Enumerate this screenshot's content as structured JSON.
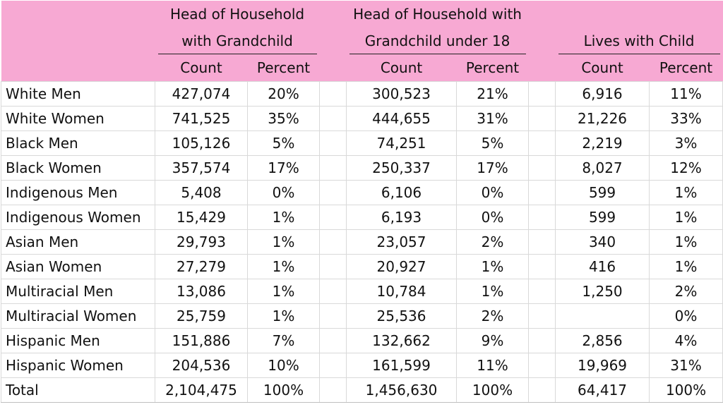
{
  "header": {
    "group1_line1": "Head of Household",
    "group1_line2": "with Grandchild",
    "group2_line1": "Head of Household with",
    "group2_line2": "Grandchild under 18",
    "group3_line2": "Lives with Child",
    "count_label": "Count",
    "percent_label": "Percent"
  },
  "rows": [
    {
      "label": "White Men",
      "a_count": "427,074",
      "a_pct": "20%",
      "b_count": "300,523",
      "b_pct": "21%",
      "c_count": "6,916",
      "c_pct": "11%"
    },
    {
      "label": "White Women",
      "a_count": "741,525",
      "a_pct": "35%",
      "b_count": "444,655",
      "b_pct": "31%",
      "c_count": "21,226",
      "c_pct": "33%"
    },
    {
      "label": "Black Men",
      "a_count": "105,126",
      "a_pct": "5%",
      "b_count": "74,251",
      "b_pct": "5%",
      "c_count": "2,219",
      "c_pct": "3%"
    },
    {
      "label": "Black Women",
      "a_count": "357,574",
      "a_pct": "17%",
      "b_count": "250,337",
      "b_pct": "17%",
      "c_count": "8,027",
      "c_pct": "12%"
    },
    {
      "label": "Indigenous Men",
      "a_count": "5,408",
      "a_pct": "0%",
      "b_count": "6,106",
      "b_pct": "0%",
      "c_count": "599",
      "c_pct": "1%"
    },
    {
      "label": "Indigenous Women",
      "a_count": "15,429",
      "a_pct": "1%",
      "b_count": "6,193",
      "b_pct": "0%",
      "c_count": "599",
      "c_pct": "1%"
    },
    {
      "label": "Asian Men",
      "a_count": "29,793",
      "a_pct": "1%",
      "b_count": "23,057",
      "b_pct": "2%",
      "c_count": "340",
      "c_pct": "1%"
    },
    {
      "label": "Asian Women",
      "a_count": "27,279",
      "a_pct": "1%",
      "b_count": "20,927",
      "b_pct": "1%",
      "c_count": "416",
      "c_pct": "1%"
    },
    {
      "label": "Multiracial Men",
      "a_count": "13,086",
      "a_pct": "1%",
      "b_count": "10,784",
      "b_pct": "1%",
      "c_count": "1,250",
      "c_pct": "2%"
    },
    {
      "label": "Multiracial Women",
      "a_count": "25,759",
      "a_pct": "1%",
      "b_count": "25,536",
      "b_pct": "2%",
      "c_count": "",
      "c_pct": "0%"
    },
    {
      "label": "Hispanic Men",
      "a_count": "151,886",
      "a_pct": "7%",
      "b_count": "132,662",
      "b_pct": "9%",
      "c_count": "2,856",
      "c_pct": "4%"
    },
    {
      "label": "Hispanic Women",
      "a_count": "204,536",
      "a_pct": "10%",
      "b_count": "161,599",
      "b_pct": "11%",
      "c_count": "19,969",
      "c_pct": "31%"
    },
    {
      "label": "Total",
      "a_count": "2,104,475",
      "a_pct": "100%",
      "b_count": "1,456,630",
      "b_pct": "100%",
      "c_count": "64,417",
      "c_pct": "100%"
    }
  ],
  "colors": {
    "header_bg": "#f7a9d3",
    "grid": "#d9d9d9"
  }
}
